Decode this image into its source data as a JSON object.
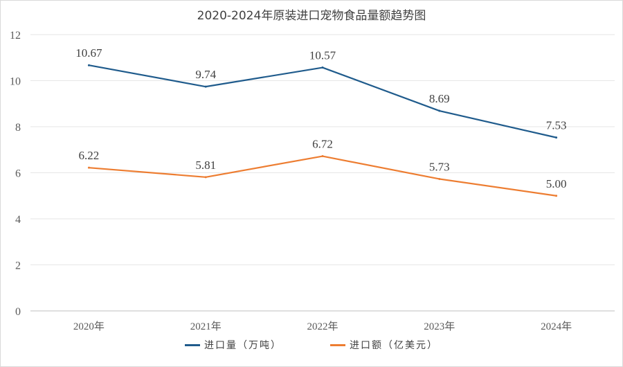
{
  "chart_data": {
    "type": "line",
    "title": "2020-2024年原装进口宠物食品量额趋势图",
    "categories": [
      "2020年",
      "2021年",
      "2022年",
      "2023年",
      "2024年"
    ],
    "ylim": [
      0,
      12
    ],
    "yticks": [
      0,
      2,
      4,
      6,
      8,
      10,
      12
    ],
    "yticklabels": [
      "0",
      "2",
      "4",
      "6",
      "8",
      "10",
      "12"
    ],
    "grid": true,
    "legend_position": "bottom",
    "series": [
      {
        "name": "进口量（万吨）",
        "color": "#1f5b8c",
        "values": [
          10.67,
          9.74,
          10.57,
          8.69,
          7.53
        ],
        "labels": [
          "10.67",
          "9.74",
          "10.57",
          "8.69",
          "7.53"
        ]
      },
      {
        "name": "进口额（亿美元）",
        "color": "#ed7d31",
        "values": [
          6.22,
          5.81,
          6.72,
          5.73,
          5.0
        ],
        "labels": [
          "6.22",
          "5.81",
          "6.72",
          "5.73",
          "5.00"
        ]
      }
    ]
  }
}
